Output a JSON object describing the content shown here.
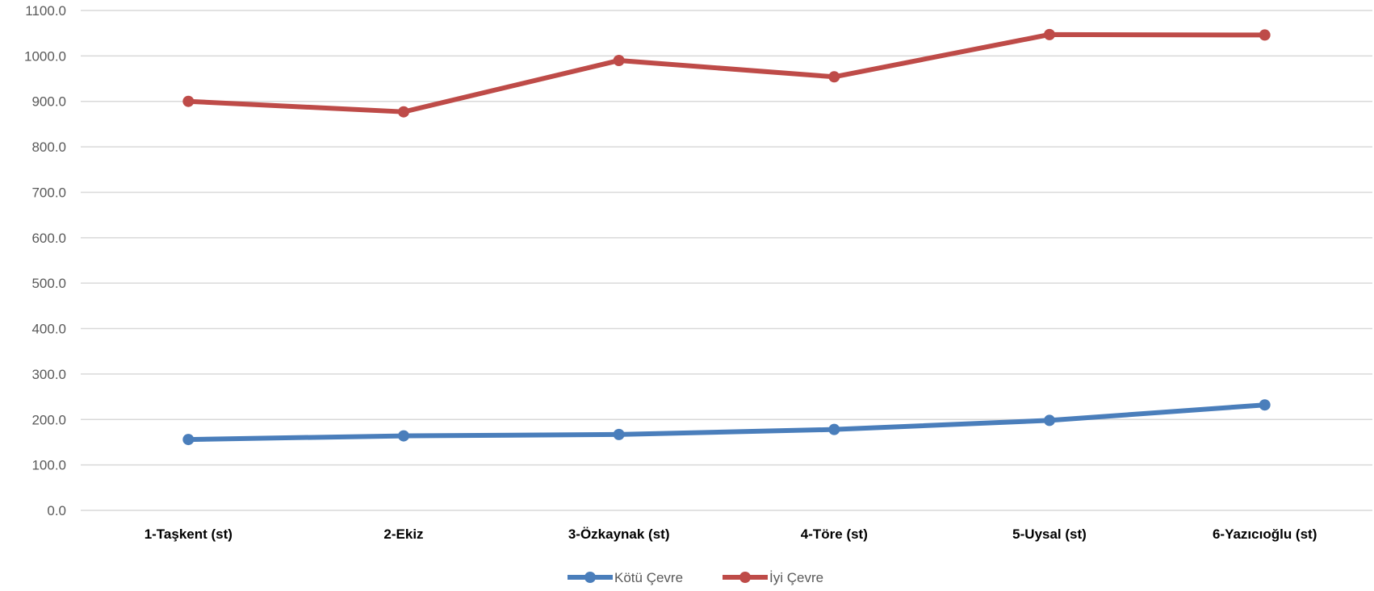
{
  "chart_data": {
    "type": "line",
    "categories": [
      "1-Taşkent (st)",
      "2-Ekiz",
      "3-Özkaynak (st)",
      "4-Töre (st)",
      "5-Uysal (st)",
      "6-Yazıcıoğlu (st)"
    ],
    "series": [
      {
        "name": "Kötü Çevre",
        "color": "#4a7ebb",
        "values": [
          156,
          164,
          167,
          178,
          198,
          232
        ]
      },
      {
        "name": "İyi Çevre",
        "color": "#be4b48",
        "values": [
          900,
          877,
          990,
          954,
          1047,
          1046
        ]
      }
    ],
    "yticks": [
      "0.0",
      "100.0",
      "200.0",
      "300.0",
      "400.0",
      "500.0",
      "600.0",
      "700.0",
      "800.0",
      "900.0",
      "1000.0",
      "1100.0"
    ],
    "ylim": [
      0,
      1100
    ],
    "grid": true,
    "legend_position": "bottom"
  }
}
